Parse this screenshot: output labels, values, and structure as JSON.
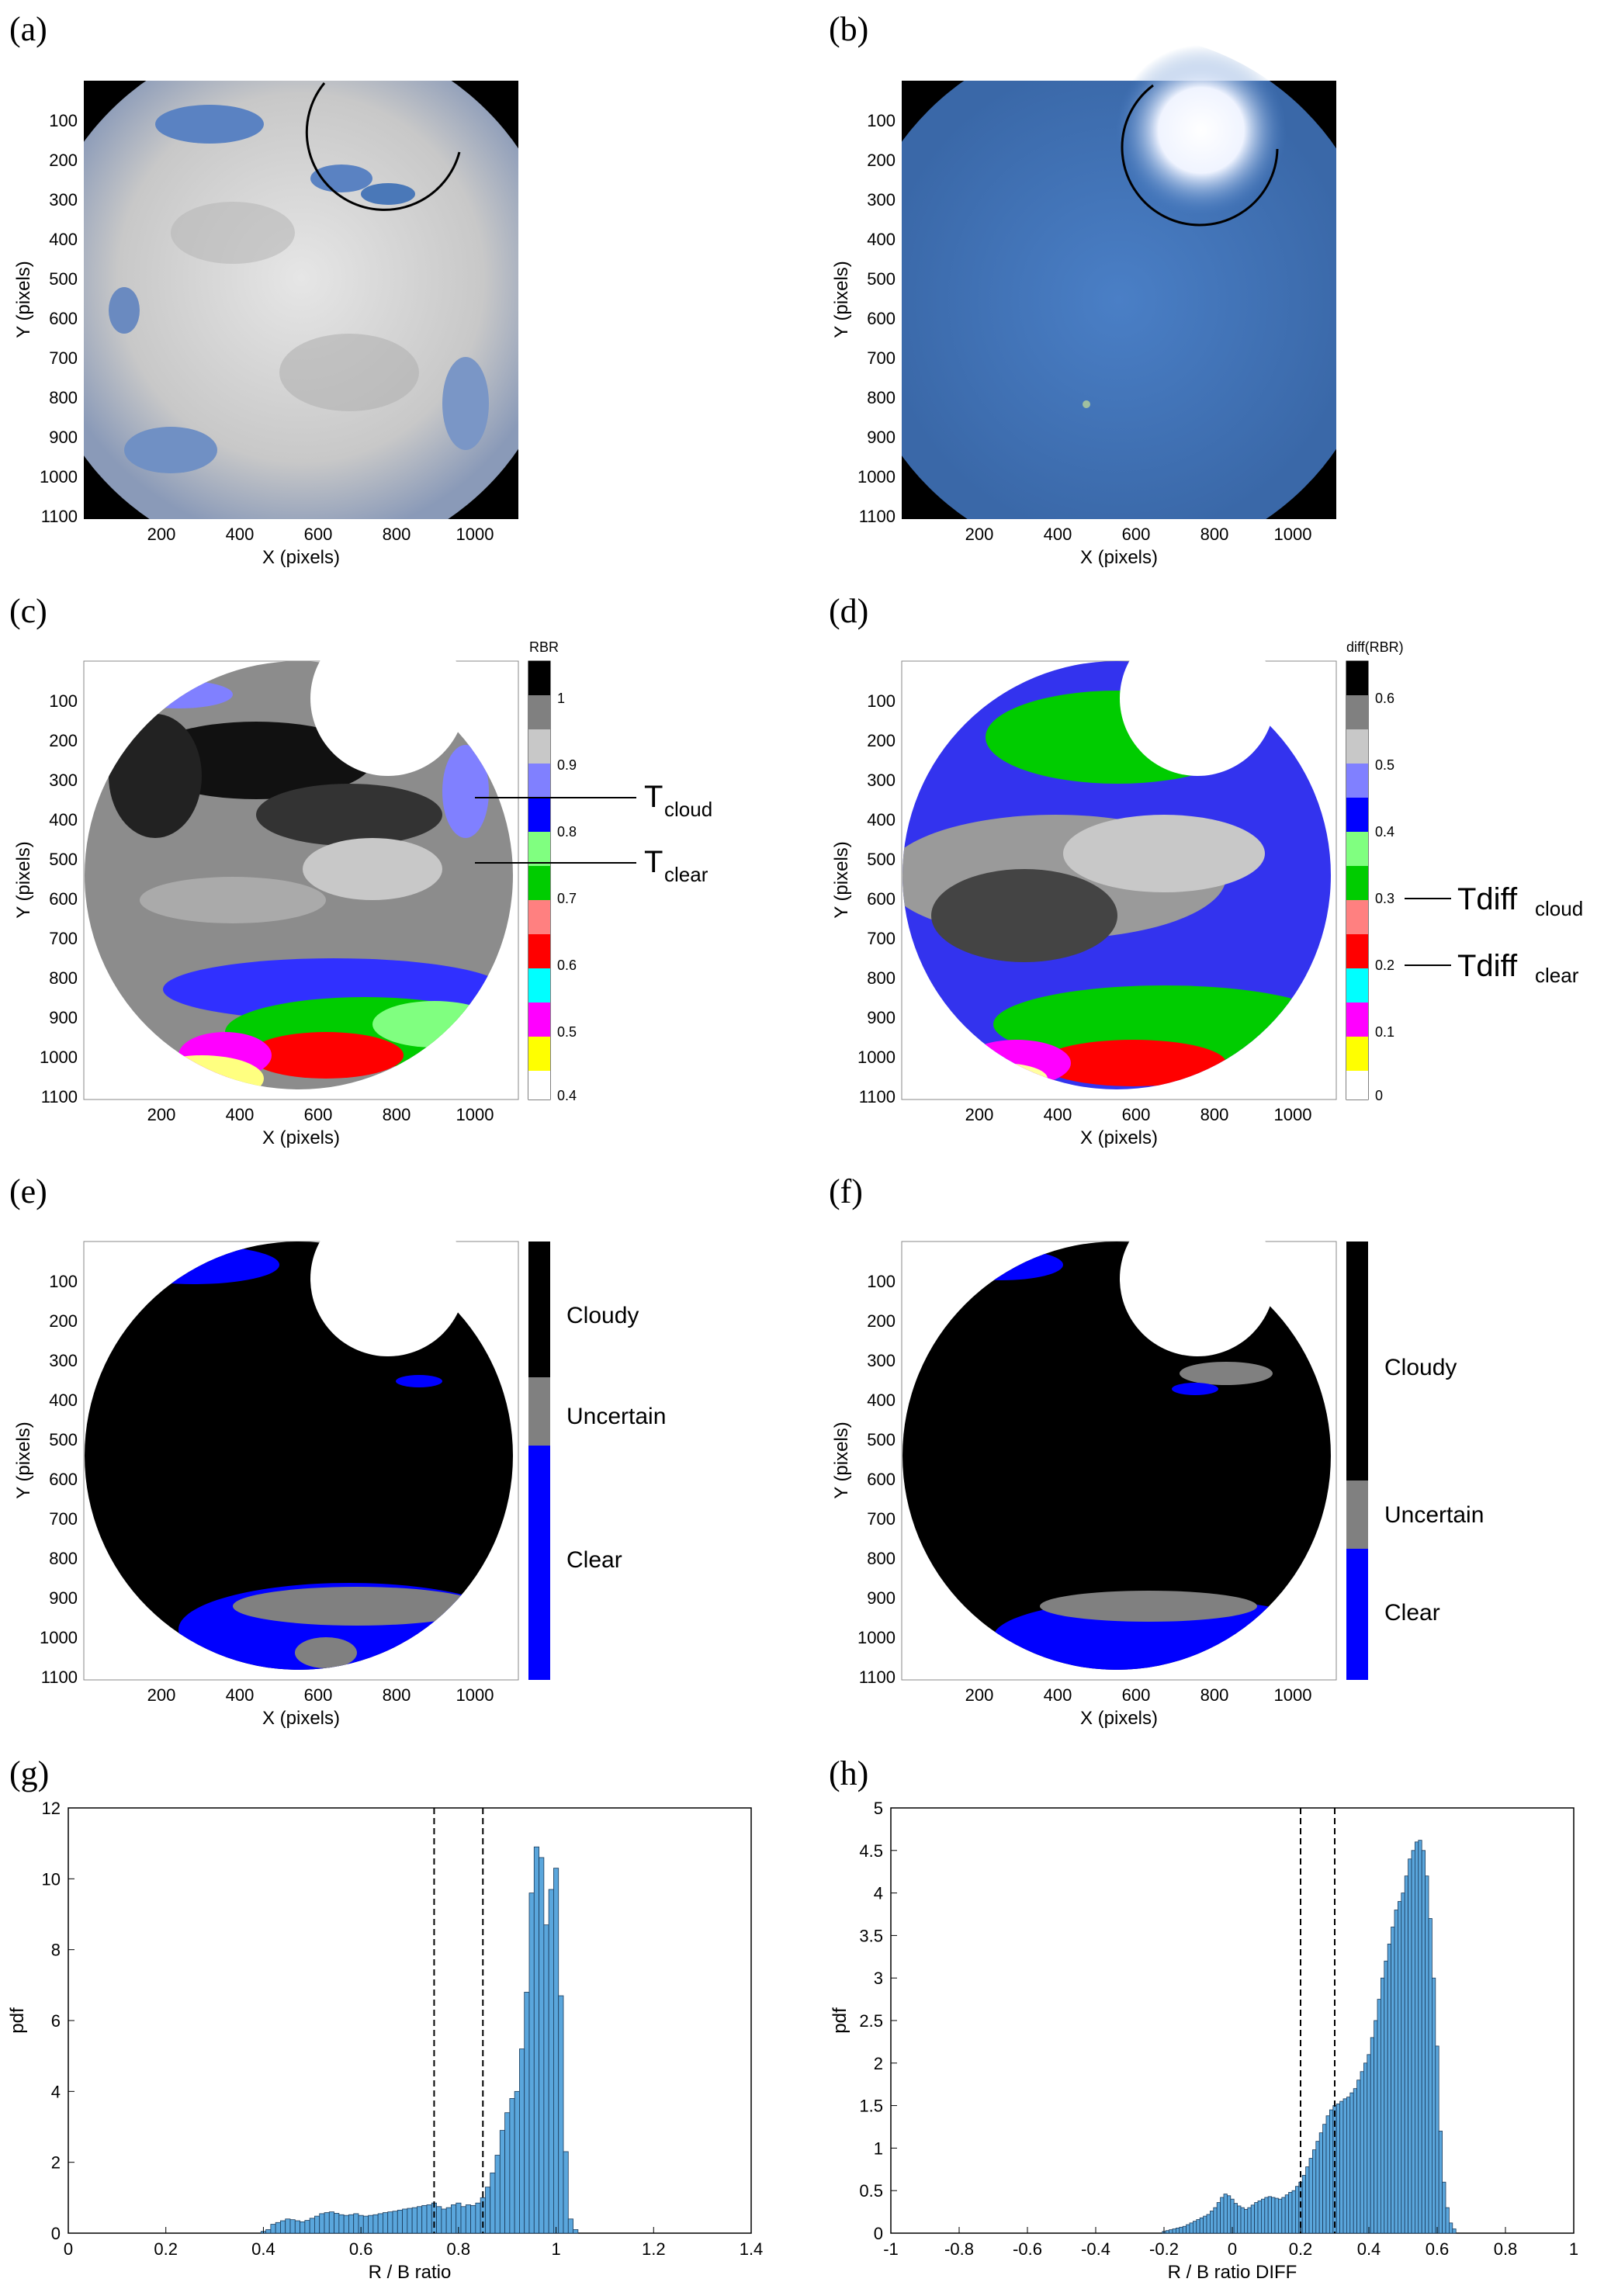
{
  "panels": {
    "a": "(a)",
    "b": "(b)",
    "c": "(c)",
    "d": "(d)",
    "e": "(e)",
    "f": "(f)",
    "g": "(g)",
    "h": "(h)"
  },
  "image_axes": {
    "xlabel": "X (pixels)",
    "ylabel": "Y (pixels)",
    "xticks": [
      "200",
      "400",
      "600",
      "800",
      "1000"
    ],
    "yticks": [
      "100",
      "200",
      "300",
      "400",
      "500",
      "600",
      "700",
      "800",
      "900",
      "1000",
      "1100"
    ]
  },
  "colorbars": {
    "rbr": {
      "title": "RBR",
      "labels": [
        "1",
        "0.9",
        "0.8",
        "0.7",
        "0.6",
        "0.5",
        "0.4"
      ],
      "colors": [
        "#000000",
        "#808080",
        "#c8c8c8",
        "#8080ff",
        "#0000ff",
        "#80ff80",
        "#00cc00",
        "#ff8080",
        "#ff0000",
        "#00ffff",
        "#ff00ff",
        "#ffff00",
        "#ffffff"
      ]
    },
    "diff": {
      "title": "diff(RBR)",
      "labels": [
        "0.6",
        "0.5",
        "0.4",
        "0.3",
        "0.2",
        "0.1",
        "0"
      ],
      "colors": [
        "#000000",
        "#808080",
        "#c8c8c8",
        "#8080ff",
        "#0000ff",
        "#80ff80",
        "#00cc00",
        "#ff8080",
        "#ff0000",
        "#00ffff",
        "#ff00ff",
        "#ffff00",
        "#ffffff"
      ]
    },
    "class": {
      "labels": [
        "Cloudy",
        "Uncertain",
        "Clear"
      ],
      "colors": [
        "#000000",
        "#808080",
        "#0000ff"
      ]
    }
  },
  "thresholds": {
    "t_cloud": "T",
    "t_cloud_sub": "cloud",
    "t_clear": "T",
    "t_clear_sub": "clear",
    "tdiff_cloud": "Tdiff",
    "tdiff_cloud_sub": "cloud",
    "tdiff_clear": "Tdiff",
    "tdiff_clear_sub": "clear"
  },
  "colors": {
    "bar_fill": "#5aa6dc",
    "bar_edge": "#1a3a5a",
    "sky": "#4a78b8",
    "cloud": "#dcdcdc"
  },
  "chart_data": [
    {
      "type": "bar",
      "panel": "g",
      "xlabel": "R / B ratio",
      "ylabel": "pdf",
      "xlim": [
        0,
        1.4
      ],
      "ylim": [
        0,
        12
      ],
      "xticks": [
        "0",
        "0.2",
        "0.4",
        "0.6",
        "0.8",
        "1",
        "1.2",
        "1.4"
      ],
      "yticks": [
        "0",
        "2",
        "4",
        "6",
        "8",
        "10",
        "12"
      ],
      "threshold_lines": [
        0.75,
        0.85
      ],
      "bin_width": 0.01,
      "bin_centers": [
        0.4,
        0.41,
        0.42,
        0.43,
        0.44,
        0.45,
        0.46,
        0.47,
        0.48,
        0.49,
        0.5,
        0.51,
        0.52,
        0.53,
        0.54,
        0.55,
        0.56,
        0.57,
        0.58,
        0.59,
        0.6,
        0.61,
        0.62,
        0.63,
        0.64,
        0.65,
        0.66,
        0.67,
        0.68,
        0.69,
        0.7,
        0.71,
        0.72,
        0.73,
        0.74,
        0.75,
        0.76,
        0.77,
        0.78,
        0.79,
        0.8,
        0.81,
        0.82,
        0.83,
        0.84,
        0.85,
        0.86,
        0.87,
        0.88,
        0.89,
        0.9,
        0.91,
        0.92,
        0.93,
        0.94,
        0.95,
        0.96,
        0.97,
        0.98,
        0.99,
        1.0,
        1.01,
        1.02,
        1.03,
        1.04
      ],
      "values": [
        0.05,
        0.1,
        0.25,
        0.3,
        0.35,
        0.4,
        0.38,
        0.35,
        0.32,
        0.36,
        0.42,
        0.48,
        0.55,
        0.58,
        0.6,
        0.56,
        0.52,
        0.5,
        0.52,
        0.55,
        0.5,
        0.48,
        0.5,
        0.52,
        0.55,
        0.58,
        0.6,
        0.62,
        0.65,
        0.68,
        0.7,
        0.72,
        0.75,
        0.78,
        0.8,
        0.85,
        0.75,
        0.68,
        0.72,
        0.8,
        0.85,
        0.75,
        0.8,
        0.78,
        0.85,
        1.0,
        1.3,
        1.7,
        2.2,
        2.9,
        3.4,
        3.8,
        4.0,
        5.2,
        6.8,
        9.6,
        10.9,
        10.6,
        8.7,
        9.7,
        10.3,
        6.7,
        2.3,
        0.4,
        0.1
      ]
    },
    {
      "type": "bar",
      "panel": "h",
      "xlabel": "R / B ratio DIFF",
      "ylabel": "pdf",
      "xlim": [
        -1,
        1
      ],
      "ylim": [
        0,
        5
      ],
      "xticks": [
        "-1",
        "-0.8",
        "-0.6",
        "-0.4",
        "-0.2",
        "0",
        "0.2",
        "0.4",
        "0.6",
        "0.8",
        "1"
      ],
      "yticks": [
        "0",
        "0.5",
        "1",
        "1.5",
        "2",
        "2.5",
        "3",
        "3.5",
        "4",
        "4.5",
        "5"
      ],
      "threshold_lines": [
        0.2,
        0.3
      ],
      "bin_width": 0.01,
      "bin_centers": [
        -0.2,
        -0.19,
        -0.18,
        -0.17,
        -0.16,
        -0.15,
        -0.14,
        -0.13,
        -0.12,
        -0.11,
        -0.1,
        -0.09,
        -0.08,
        -0.07,
        -0.06,
        -0.05,
        -0.04,
        -0.03,
        -0.02,
        -0.01,
        0.0,
        0.01,
        0.02,
        0.03,
        0.04,
        0.05,
        0.06,
        0.07,
        0.08,
        0.09,
        0.1,
        0.11,
        0.12,
        0.13,
        0.14,
        0.15,
        0.16,
        0.17,
        0.18,
        0.19,
        0.2,
        0.21,
        0.22,
        0.23,
        0.24,
        0.25,
        0.26,
        0.27,
        0.28,
        0.29,
        0.3,
        0.31,
        0.32,
        0.33,
        0.34,
        0.35,
        0.36,
        0.37,
        0.38,
        0.39,
        0.4,
        0.41,
        0.42,
        0.43,
        0.44,
        0.45,
        0.46,
        0.47,
        0.48,
        0.49,
        0.5,
        0.51,
        0.52,
        0.53,
        0.54,
        0.55,
        0.56,
        0.57,
        0.58,
        0.59,
        0.6,
        0.61,
        0.62,
        0.63,
        0.64,
        0.65
      ],
      "values": [
        0.02,
        0.03,
        0.04,
        0.05,
        0.06,
        0.07,
        0.08,
        0.1,
        0.12,
        0.14,
        0.16,
        0.18,
        0.2,
        0.22,
        0.26,
        0.3,
        0.36,
        0.42,
        0.46,
        0.44,
        0.4,
        0.35,
        0.32,
        0.3,
        0.28,
        0.3,
        0.33,
        0.36,
        0.38,
        0.4,
        0.42,
        0.43,
        0.42,
        0.41,
        0.4,
        0.42,
        0.45,
        0.48,
        0.5,
        0.55,
        0.6,
        0.68,
        0.78,
        0.88,
        0.98,
        1.08,
        1.18,
        1.28,
        1.38,
        1.45,
        1.5,
        1.52,
        1.55,
        1.58,
        1.6,
        1.65,
        1.7,
        1.8,
        1.9,
        2.0,
        2.1,
        2.3,
        2.5,
        2.75,
        3.0,
        3.2,
        3.4,
        3.6,
        3.8,
        3.9,
        4.0,
        4.2,
        4.4,
        4.5,
        4.6,
        4.62,
        4.5,
        4.2,
        3.7,
        3.0,
        2.2,
        1.2,
        0.6,
        0.3,
        0.12,
        0.05
      ]
    }
  ]
}
